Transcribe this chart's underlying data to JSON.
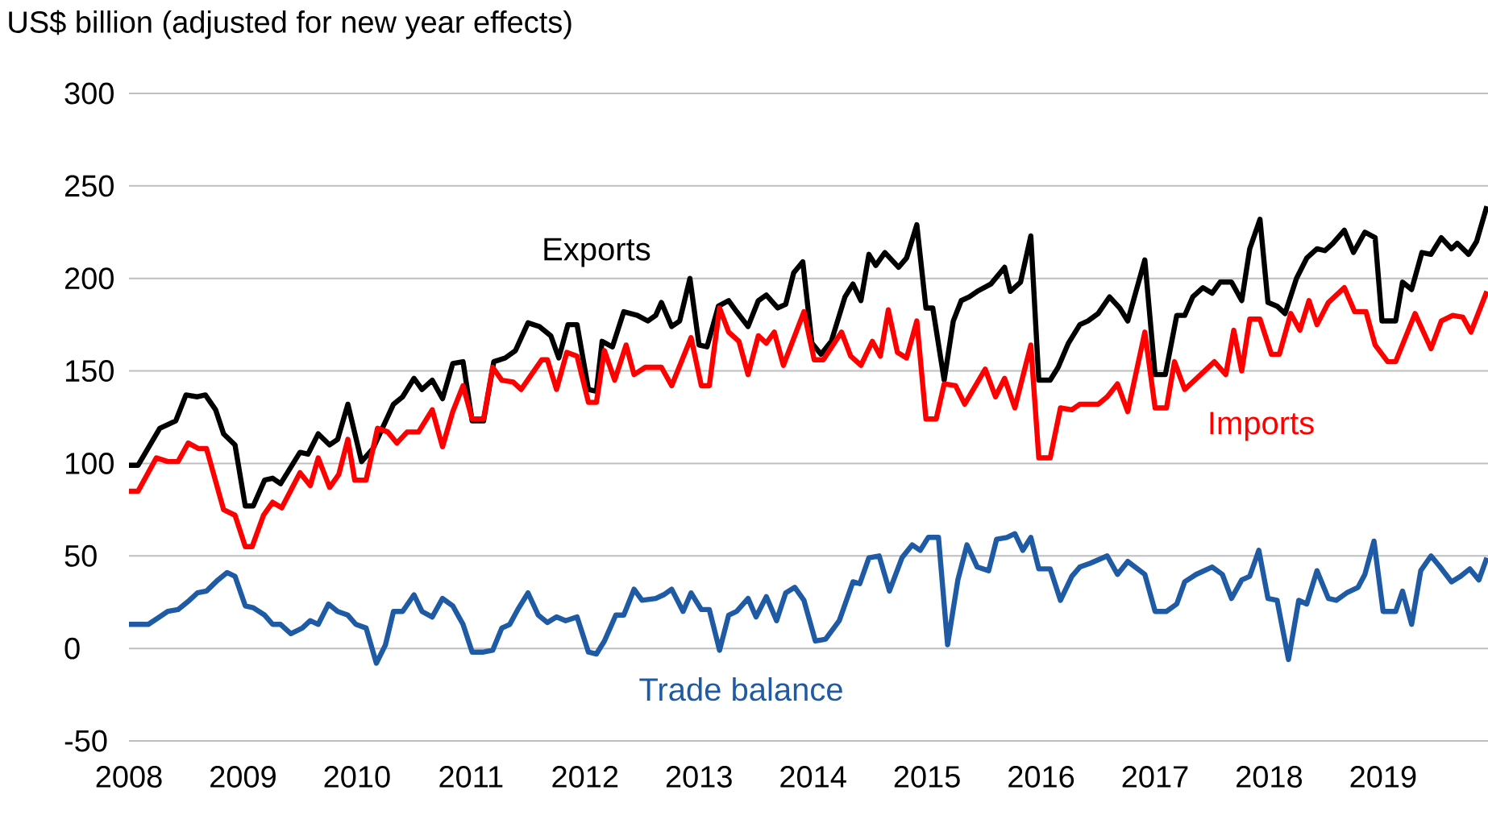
{
  "chart_data": {
    "type": "line",
    "ylabel": "US$ billion (adjusted for new year effects)",
    "xlim": [
      2008,
      2019.92
    ],
    "xticks": [
      2008,
      2009,
      2010,
      2011,
      2012,
      2013,
      2014,
      2015,
      2016,
      2017,
      2018,
      2019
    ],
    "ylim": [
      -50,
      300
    ],
    "yticks": [
      -50,
      0,
      50,
      100,
      150,
      200,
      250,
      300
    ],
    "grid": "y",
    "marker": "none",
    "line_style": "solid",
    "series": [
      {
        "name": "Exports",
        "color": "#000000",
        "x": [
          2008.0,
          2008.08,
          2008.27,
          2008.41,
          2008.5,
          2008.6,
          2008.67,
          2008.76,
          2008.83,
          2008.93,
          2009.02,
          2009.09,
          2009.19,
          2009.26,
          2009.33,
          2009.5,
          2009.57,
          2009.66,
          2009.76,
          2009.83,
          2009.92,
          2010.04,
          2010.14,
          2010.32,
          2010.4,
          2010.5,
          2010.57,
          2010.66,
          2010.75,
          2010.84,
          2010.93,
          2011.01,
          2011.11,
          2011.2,
          2011.3,
          2011.39,
          2011.5,
          2011.6,
          2011.7,
          2011.77,
          2011.85,
          2011.93,
          2012.03,
          2012.1,
          2012.15,
          2012.24,
          2012.34,
          2012.46,
          2012.55,
          2012.62,
          2012.67,
          2012.76,
          2012.83,
          2012.92,
          2013.0,
          2013.07,
          2013.17,
          2013.26,
          2013.33,
          2013.43,
          2013.52,
          2013.59,
          2013.69,
          2013.76,
          2013.83,
          2013.91,
          2013.99,
          2014.07,
          2014.16,
          2014.28,
          2014.35,
          2014.42,
          2014.49,
          2014.55,
          2014.63,
          2014.75,
          2014.82,
          2014.91,
          2014.99,
          2015.05,
          2015.15,
          2015.23,
          2015.3,
          2015.37,
          2015.44,
          2015.56,
          2015.68,
          2015.73,
          2015.82,
          2015.91,
          2015.98,
          2016.08,
          2016.15,
          2016.24,
          2016.34,
          2016.41,
          2016.5,
          2016.6,
          2016.69,
          2016.76,
          2016.91,
          2017.0,
          2017.09,
          2017.19,
          2017.26,
          2017.33,
          2017.42,
          2017.5,
          2017.57,
          2017.67,
          2017.76,
          2017.83,
          2017.92,
          2017.99,
          2018.07,
          2018.14,
          2018.24,
          2018.33,
          2018.42,
          2018.49,
          2018.56,
          2018.66,
          2018.74,
          2018.84,
          2018.93,
          2018.99,
          2019.11,
          2019.17,
          2019.25,
          2019.34,
          2019.42,
          2019.51,
          2019.6,
          2019.65,
          2019.75,
          2019.82,
          2019.91
        ],
        "values": [
          99,
          99,
          119,
          123,
          137,
          136,
          137,
          129,
          116,
          110,
          77,
          77,
          91,
          92,
          89,
          106,
          105,
          116,
          110,
          113,
          132,
          101,
          108,
          132,
          136,
          146,
          140,
          145,
          135,
          154,
          155,
          123,
          123,
          155,
          157,
          161,
          176,
          174,
          169,
          157,
          175,
          175,
          140,
          139,
          166,
          163,
          182,
          180,
          177,
          180,
          187,
          174,
          177,
          200,
          164,
          163,
          185,
          188,
          182,
          174,
          188,
          191,
          184,
          186,
          203,
          209,
          165,
          159,
          166,
          190,
          197,
          188,
          213,
          207,
          214,
          206,
          211,
          229,
          184,
          184,
          145,
          177,
          188,
          190,
          193,
          197,
          206,
          193,
          198,
          223,
          145,
          145,
          152,
          165,
          175,
          177,
          181,
          190,
          184,
          177,
          210,
          148,
          148,
          180,
          180,
          190,
          195,
          192,
          198,
          198,
          188,
          216,
          232,
          187,
          185,
          181,
          200,
          211,
          216,
          215,
          219,
          226,
          214,
          225,
          222,
          177,
          177,
          198,
          194,
          214,
          213,
          222,
          216,
          219,
          213,
          220,
          239
        ]
      },
      {
        "name": "Imports",
        "color": "#ff0000",
        "x": [
          2008.0,
          2008.08,
          2008.24,
          2008.34,
          2008.43,
          2008.52,
          2008.61,
          2008.68,
          2008.83,
          2008.93,
          2009.02,
          2009.08,
          2009.18,
          2009.26,
          2009.34,
          2009.5,
          2009.59,
          2009.66,
          2009.76,
          2009.84,
          2009.92,
          2009.98,
          2010.08,
          2010.18,
          2010.27,
          2010.35,
          2010.44,
          2010.54,
          2010.66,
          2010.75,
          2010.84,
          2010.93,
          2011.01,
          2011.11,
          2011.19,
          2011.27,
          2011.37,
          2011.44,
          2011.53,
          2011.62,
          2011.67,
          2011.75,
          2011.84,
          2011.93,
          2012.03,
          2012.1,
          2012.17,
          2012.26,
          2012.36,
          2012.43,
          2012.53,
          2012.67,
          2012.76,
          2012.93,
          2013.02,
          2013.09,
          2013.18,
          2013.26,
          2013.35,
          2013.43,
          2013.52,
          2013.59,
          2013.66,
          2013.74,
          2013.92,
          2014.01,
          2014.09,
          2014.25,
          2014.33,
          2014.42,
          2014.52,
          2014.59,
          2014.66,
          2014.74,
          2014.82,
          2014.91,
          2014.99,
          2015.08,
          2015.15,
          2015.25,
          2015.33,
          2015.51,
          2015.6,
          2015.68,
          2015.77,
          2015.91,
          2015.98,
          2016.08,
          2016.17,
          2016.27,
          2016.34,
          2016.5,
          2016.58,
          2016.67,
          2016.76,
          2016.91,
          2017.0,
          2017.1,
          2017.17,
          2017.26,
          2017.4,
          2017.52,
          2017.62,
          2017.69,
          2017.76,
          2017.83,
          2017.92,
          2018.02,
          2018.09,
          2018.19,
          2018.27,
          2018.35,
          2018.42,
          2018.52,
          2018.66,
          2018.75,
          2018.85,
          2018.93,
          2019.04,
          2019.11,
          2019.28,
          2019.42,
          2019.51,
          2019.61,
          2019.7,
          2019.77,
          2019.91
        ],
        "values": [
          85,
          85,
          103,
          101,
          101,
          111,
          108,
          108,
          75,
          72,
          55,
          55,
          72,
          79,
          76,
          95,
          88,
          103,
          87,
          94,
          113,
          91,
          91,
          119,
          117,
          111,
          117,
          117,
          129,
          109,
          128,
          142,
          124,
          124,
          152,
          145,
          144,
          140,
          148,
          156,
          156,
          140,
          160,
          158,
          133,
          133,
          161,
          145,
          164,
          148,
          152,
          152,
          142,
          168,
          142,
          142,
          184,
          171,
          166,
          148,
          169,
          165,
          171,
          153,
          182,
          156,
          156,
          171,
          158,
          153,
          166,
          158,
          183,
          160,
          157,
          177,
          124,
          124,
          143,
          142,
          132,
          151,
          136,
          146,
          130,
          164,
          103,
          103,
          130,
          129,
          132,
          132,
          136,
          143,
          128,
          171,
          130,
          130,
          155,
          140,
          148,
          155,
          148,
          172,
          150,
          178,
          178,
          159,
          159,
          181,
          172,
          188,
          175,
          187,
          195,
          182,
          182,
          164,
          155,
          155,
          181,
          162,
          177,
          180,
          179,
          171,
          193
        ]
      },
      {
        "name": "Trade balance",
        "color": "#1f5ba5",
        "x": [
          2008.0,
          2008.08,
          2008.17,
          2008.34,
          2008.43,
          2008.53,
          2008.6,
          2008.68,
          2008.78,
          2008.86,
          2008.93,
          2009.02,
          2009.09,
          2009.19,
          2009.26,
          2009.33,
          2009.42,
          2009.52,
          2009.59,
          2009.66,
          2009.75,
          2009.83,
          2009.92,
          2009.99,
          2010.08,
          2010.17,
          2010.25,
          2010.32,
          2010.4,
          2010.5,
          2010.57,
          2010.66,
          2010.75,
          2010.84,
          2010.93,
          2011.01,
          2011.11,
          2011.19,
          2011.27,
          2011.34,
          2011.41,
          2011.5,
          2011.59,
          2011.67,
          2011.75,
          2011.83,
          2011.93,
          2012.03,
          2012.1,
          2012.17,
          2012.27,
          2012.34,
          2012.43,
          2012.5,
          2012.62,
          2012.69,
          2012.76,
          2012.86,
          2012.93,
          2013.02,
          2013.09,
          2013.18,
          2013.26,
          2013.33,
          2013.43,
          2013.5,
          2013.59,
          2013.68,
          2013.76,
          2013.84,
          2013.92,
          2014.02,
          2014.11,
          2014.23,
          2014.35,
          2014.41,
          2014.49,
          2014.58,
          2014.67,
          2014.78,
          2014.87,
          2014.94,
          2015.01,
          2015.1,
          2015.18,
          2015.27,
          2015.35,
          2015.44,
          2015.54,
          2015.61,
          2015.7,
          2015.77,
          2015.84,
          2015.91,
          2015.98,
          2016.08,
          2016.17,
          2016.27,
          2016.34,
          2016.43,
          2016.58,
          2016.67,
          2016.76,
          2016.91,
          2017.0,
          2017.1,
          2017.19,
          2017.26,
          2017.36,
          2017.5,
          2017.59,
          2017.67,
          2017.76,
          2017.83,
          2017.91,
          2017.99,
          2018.07,
          2018.17,
          2018.26,
          2018.33,
          2018.42,
          2018.52,
          2018.59,
          2018.68,
          2018.78,
          2018.84,
          2018.92,
          2019.0,
          2019.11,
          2019.17,
          2019.25,
          2019.33,
          2019.42,
          2019.5,
          2019.6,
          2019.68,
          2019.76,
          2019.84,
          2019.91
        ],
        "values": [
          13,
          13,
          13,
          20,
          21,
          26,
          30,
          31,
          37,
          41,
          39,
          23,
          22,
          18,
          13,
          13,
          8,
          11,
          15,
          13,
          24,
          20,
          18,
          13,
          11,
          -8,
          2,
          20,
          20,
          29,
          20,
          17,
          27,
          23,
          13,
          -2,
          -2,
          -1,
          11,
          13,
          21,
          30,
          18,
          14,
          17,
          15,
          17,
          -2,
          -3,
          4,
          18,
          18,
          32,
          26,
          27,
          29,
          32,
          20,
          30,
          21,
          21,
          -1,
          18,
          20,
          27,
          17,
          28,
          15,
          30,
          33,
          26,
          4,
          5,
          15,
          36,
          35,
          49,
          50,
          31,
          49,
          56,
          53,
          60,
          60,
          2,
          37,
          56,
          44,
          42,
          59,
          60,
          62,
          53,
          60,
          43,
          43,
          26,
          39,
          44,
          46,
          50,
          40,
          47,
          40,
          20,
          20,
          24,
          36,
          40,
          44,
          40,
          27,
          37,
          39,
          53,
          27,
          26,
          -6,
          26,
          24,
          42,
          27,
          26,
          30,
          33,
          40,
          58,
          20,
          20,
          31,
          13,
          42,
          50,
          44,
          36,
          39,
          43,
          37,
          49
        ]
      }
    ]
  }
}
